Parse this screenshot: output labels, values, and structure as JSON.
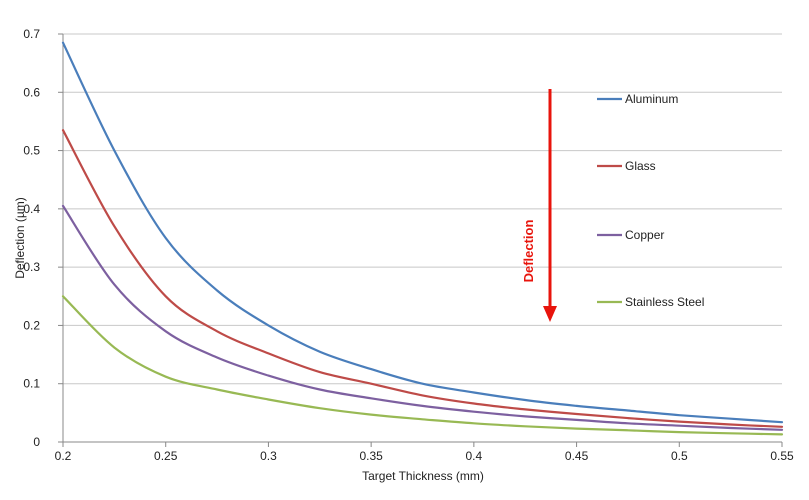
{
  "chart_data": {
    "type": "line",
    "title": "",
    "xlabel": "Target  Thickness  (mm)",
    "ylabel": "Deflection  (µm)",
    "xlim": [
      0.2,
      0.55
    ],
    "ylim": [
      0,
      0.7
    ],
    "x_ticks": [
      "0.2",
      "0.25",
      "0.3",
      "0.35",
      "0.4",
      "0.45",
      "0.5",
      "0.55"
    ],
    "y_ticks": [
      "0",
      "0.1",
      "0.2",
      "0.3",
      "0.4",
      "0.5",
      "0.6",
      "0.7"
    ],
    "grid": "horizontal",
    "legend_position": "right",
    "annotation": "Deflection",
    "colors": {
      "annotation": "#e8140c",
      "grid": "#c8c8c8",
      "axis": "#888888"
    },
    "x": [
      0.2,
      0.225,
      0.25,
      0.275,
      0.3,
      0.325,
      0.35,
      0.375,
      0.4,
      0.425,
      0.45,
      0.475,
      0.5,
      0.525,
      0.55
    ],
    "series": [
      {
        "name": "Aluminum",
        "color": "#4a7ebb",
        "values": [
          0.685,
          0.5,
          0.35,
          0.26,
          0.2,
          0.155,
          0.125,
          0.1,
          0.085,
          0.072,
          0.062,
          0.054,
          0.046,
          0.04,
          0.034
        ]
      },
      {
        "name": "Glass",
        "color": "#be4b48",
        "values": [
          0.535,
          0.37,
          0.25,
          0.19,
          0.152,
          0.12,
          0.1,
          0.08,
          0.066,
          0.056,
          0.048,
          0.041,
          0.035,
          0.03,
          0.026
        ]
      },
      {
        "name": "Copper",
        "color": "#7d60a0",
        "values": [
          0.405,
          0.27,
          0.19,
          0.145,
          0.114,
          0.09,
          0.075,
          0.062,
          0.052,
          0.044,
          0.038,
          0.032,
          0.028,
          0.024,
          0.021
        ]
      },
      {
        "name": "Stainless Steel",
        "color": "#98b954",
        "values": [
          0.25,
          0.162,
          0.112,
          0.09,
          0.073,
          0.058,
          0.047,
          0.039,
          0.032,
          0.027,
          0.023,
          0.02,
          0.017,
          0.015,
          0.013
        ]
      }
    ]
  }
}
